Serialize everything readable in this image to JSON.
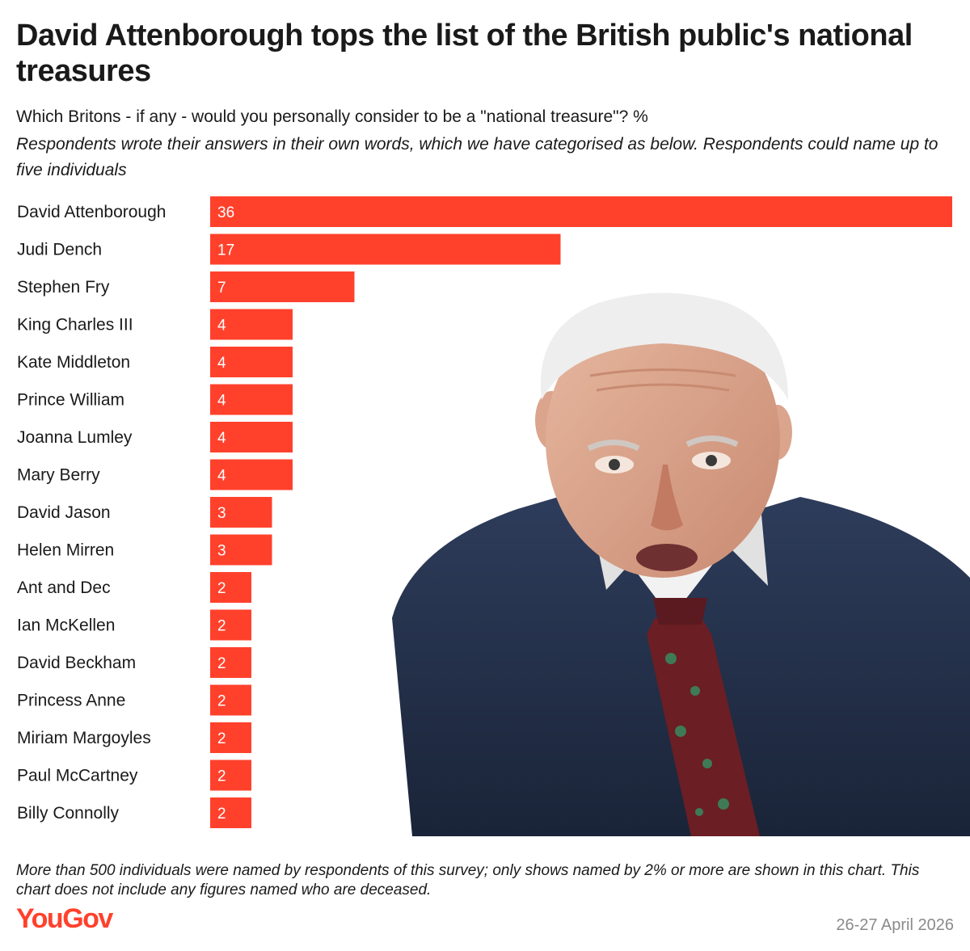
{
  "header": {
    "title": "David Attenborough tops the list of the British public's national treasures",
    "subtitle": "Which Britons - if any - would you personally consider to be a \"national treasure\"? %",
    "note": "Respondents wrote their answers in their own words, which we have categorised as below. Respondents could name up to five individuals"
  },
  "chart_data": {
    "type": "bar",
    "orientation": "horizontal",
    "categories": [
      "David Attenborough",
      "Judi Dench",
      "Stephen Fry",
      "King Charles III",
      "Kate Middleton",
      "Prince William",
      "Joanna Lumley",
      "Mary Berry",
      "David Jason",
      "Helen Mirren",
      "Ant and Dec",
      "Ian McKellen",
      "David Beckham",
      "Princess Anne",
      "Miriam Margoyles",
      "Paul McCartney",
      "Billy Connolly"
    ],
    "values": [
      36,
      17,
      7,
      4,
      4,
      4,
      4,
      4,
      3,
      3,
      2,
      2,
      2,
      2,
      2,
      2,
      2
    ],
    "bar_color": "#ff412c",
    "xlim": [
      0,
      36
    ],
    "grid": false,
    "data_labels": true
  },
  "photo": {
    "subject": "portrait-of-david-attenborough"
  },
  "footer": {
    "footnote": "More than 500 individuals were named by respondents of this survey; only shows named by 2% or more are shown in this chart. This chart does not include any figures named who are deceased.",
    "logo": "YouGov",
    "logo_color": "#ff412c",
    "date": "26-27 April 2026"
  }
}
